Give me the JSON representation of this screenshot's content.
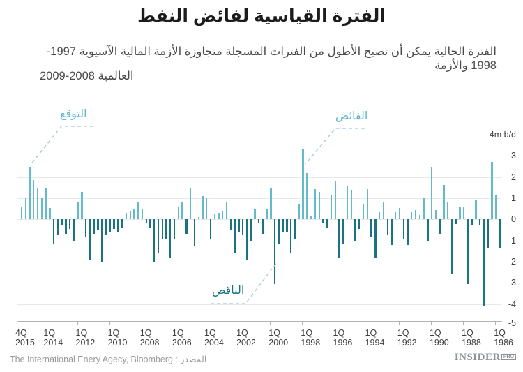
{
  "header": {
    "title": "الفترة القياسية لفائض النفط",
    "subtitle_line1": "الفترة الحالية يمكن أن تصبح الأطول من الفترات المسجلة متجاوزة الأزمة المالية الآسيوية 1997-1998 والأزمة",
    "subtitle_line2": "العالمية 2008-2009"
  },
  "annotations": {
    "forecast": {
      "label": "التوقع",
      "color": "#5db8ce"
    },
    "surplus": {
      "label": "الفائض",
      "color": "#5db8ce"
    },
    "deficit": {
      "label": "الناقص",
      "color": "#1a737f"
    }
  },
  "footer": {
    "source": "The International Enery Agecy, Bloomberg : المصدر",
    "logo_brand": "INSIDER",
    "logo_suffix": "PRO"
  },
  "chart_data": {
    "type": "bar",
    "title": "الفترة القياسية لفائض النفط",
    "unit_label": "4m b/d",
    "ylim": [
      -5,
      4
    ],
    "grid": true,
    "x_direction": "time runs newest (4Q 2015, left) to oldest (1Q 1986, right), quarterly bars",
    "colors": {
      "positive_surplus": "#64b9cb",
      "negative_deficit": "#1a737f"
    },
    "yticks": [
      {
        "label": "4m b/d",
        "v": 4
      },
      {
        "label": "3",
        "v": 3
      },
      {
        "label": "2",
        "v": 2
      },
      {
        "label": "1",
        "v": 1
      },
      {
        "label": "0",
        "v": 0
      },
      {
        "label": "-1",
        "v": -1
      },
      {
        "label": "-2",
        "v": -2
      },
      {
        "label": "-3",
        "v": -3
      },
      {
        "label": "-4",
        "v": -4
      },
      {
        "label": "-5",
        "v": -5
      }
    ],
    "xticks": [
      {
        "q": "4Q",
        "year": "2015",
        "i": 0
      },
      {
        "q": "1Q",
        "year": "2014",
        "i": 7
      },
      {
        "q": "1Q",
        "year": "2012",
        "i": 15
      },
      {
        "q": "1Q",
        "year": "2010",
        "i": 23
      },
      {
        "q": "1Q",
        "year": "2008",
        "i": 31
      },
      {
        "q": "1Q",
        "year": "2006",
        "i": 39
      },
      {
        "q": "1Q",
        "year": "2004",
        "i": 47
      },
      {
        "q": "1Q",
        "year": "2002",
        "i": 55
      },
      {
        "q": "1Q",
        "year": "2000",
        "i": 63
      },
      {
        "q": "1Q",
        "year": "1998",
        "i": 71
      },
      {
        "q": "1Q",
        "year": "1996",
        "i": 79
      },
      {
        "q": "1Q",
        "year": "1994",
        "i": 87
      },
      {
        "q": "1Q",
        "year": "1992",
        "i": 95
      },
      {
        "q": "1Q",
        "year": "1990",
        "i": 103
      },
      {
        "q": "1Q",
        "year": "1988",
        "i": 111
      },
      {
        "q": "1Q",
        "year": "1986",
        "i": 119
      }
    ],
    "values": [
      0.6,
      1,
      2.5,
      1.85,
      1.5,
      1,
      1.45,
      0.55,
      -1.15,
      -0.74,
      -0.25,
      -0.7,
      -0.45,
      -1.05,
      0.85,
      1.3,
      -0.82,
      -1.95,
      -0.68,
      -0.5,
      -2,
      -0.74,
      -0.6,
      -0.46,
      -0.63,
      -0.38,
      0.3,
      0.38,
      0.52,
      0.82,
      0.52,
      -0.2,
      -0.4,
      -2,
      -1.6,
      -0.95,
      -0.9,
      -1.85,
      -0.95,
      0.56,
      0.85,
      -0.7,
      1.5,
      -1.28,
      0.1,
      1.1,
      1.05,
      -0.9,
      0.25,
      0.3,
      0.36,
      0.8,
      -0.52,
      -1.6,
      -0.63,
      -0.74,
      -1.9,
      -1,
      0.47,
      -0.15,
      -0.68,
      0.47,
      1.45,
      -3.05,
      -1.18,
      -0.6,
      -0.6,
      -1.6,
      -0.93,
      0.72,
      3.3,
      2.2,
      0.15,
      1.43,
      1.3,
      -0.2,
      -0.4,
      1.13,
      1.8,
      -1.83,
      -1.15,
      1.6,
      1.4,
      -1,
      -0.45,
      0.72,
      1.43,
      -0.8,
      -1.8,
      0.33,
      0.85,
      -0.74,
      -1.2,
      0.33,
      0.55,
      -0.9,
      -1.2,
      0.33,
      0.44,
      0.2,
      1,
      -1,
      2.5,
      0.44,
      -0.7,
      1.63,
      0.85,
      -2.55,
      -0.22,
      0.6,
      0.6,
      -3.05,
      -0.3,
      0.92,
      -0.3,
      -4.1,
      -1.37,
      2.72,
      1.13,
      -1.37
    ],
    "annotation_targets": {
      "forecast_bar_index": 2,
      "surplus_bar_index": 70,
      "deficit_bar_index": 63
    }
  }
}
